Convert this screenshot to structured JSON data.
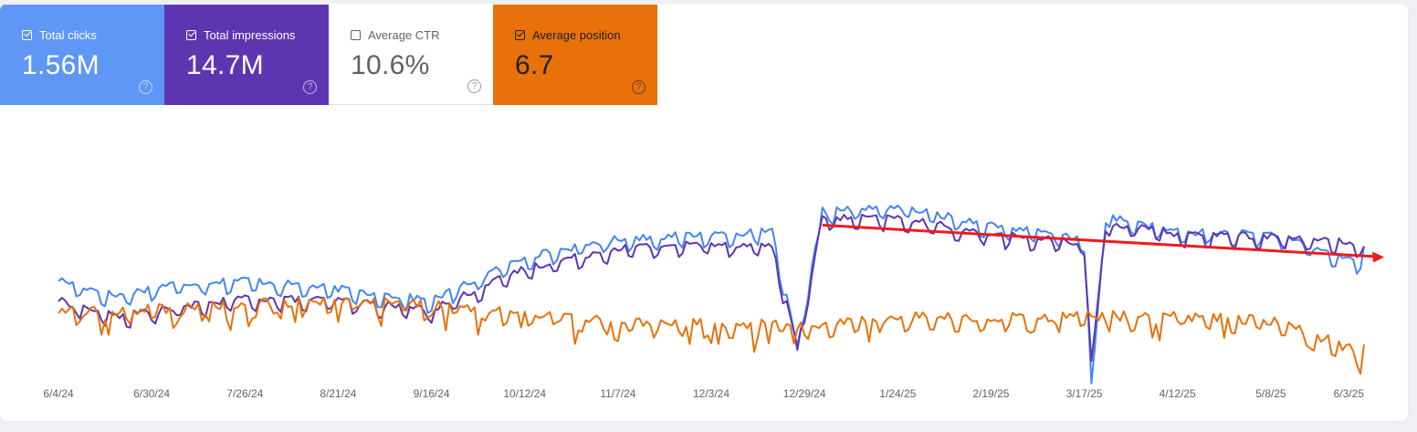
{
  "metrics": [
    {
      "label": "Total clicks",
      "value": "1.56M",
      "checked": true,
      "bg": "#5e97f6",
      "text_color": "#ffffff",
      "icon": "help-icon"
    },
    {
      "label": "Total impressions",
      "value": "14.7M",
      "checked": true,
      "bg": "#5e35b1",
      "text_color": "#ffffff",
      "icon": "help-icon"
    },
    {
      "label": "Average CTR",
      "value": "10.6%",
      "checked": false,
      "bg": "#ffffff",
      "text_color": "#5f6368",
      "icon": "help-icon"
    },
    {
      "label": "Average position",
      "value": "6.7",
      "checked": true,
      "bg": "#e8710a",
      "text_color": "#202124",
      "icon": "help-icon"
    }
  ],
  "chart_data": {
    "type": "line",
    "x_tick_labels": [
      "6/4/24",
      "6/30/24",
      "7/26/24",
      "8/21/24",
      "9/16/24",
      "10/12/24",
      "11/7/24",
      "12/3/24",
      "12/29/24",
      "1/24/25",
      "2/19/25",
      "3/17/25",
      "4/12/25",
      "5/8/25",
      "6/3/25"
    ],
    "x_range": [
      "6/4/24",
      "6/3/25"
    ],
    "grid": false,
    "y_axis_labels_shown": false,
    "series": [
      {
        "name": "Total clicks",
        "color": "#4285f4",
        "trend": "relative_level_0_to_1",
        "keypoints": [
          [
            "6/4/24",
            0.42
          ],
          [
            "6/20/24",
            0.35
          ],
          [
            "7/5/24",
            0.4
          ],
          [
            "7/26/24",
            0.42
          ],
          [
            "8/21/24",
            0.38
          ],
          [
            "9/16/24",
            0.33
          ],
          [
            "10/12/24",
            0.52
          ],
          [
            "11/7/24",
            0.6
          ],
          [
            "12/3/24",
            0.62
          ],
          [
            "12/20/24",
            0.63
          ],
          [
            "12/27/24",
            0.12
          ],
          [
            "1/3/25",
            0.72
          ],
          [
            "1/24/25",
            0.74
          ],
          [
            "2/19/25",
            0.66
          ],
          [
            "3/17/25",
            0.6
          ],
          [
            "3/19/25",
            -0.05
          ],
          [
            "3/23/25",
            0.7
          ],
          [
            "4/12/25",
            0.63
          ],
          [
            "5/8/25",
            0.62
          ],
          [
            "6/1/25",
            0.5
          ],
          [
            "6/3/25",
            0.55
          ]
        ]
      },
      {
        "name": "Total impressions",
        "color": "#5e35b1",
        "trend": "relative_level_0_to_1",
        "keypoints": [
          [
            "6/4/24",
            0.33
          ],
          [
            "6/20/24",
            0.26
          ],
          [
            "7/26/24",
            0.34
          ],
          [
            "8/21/24",
            0.33
          ],
          [
            "9/16/24",
            0.29
          ],
          [
            "10/12/24",
            0.47
          ],
          [
            "11/7/24",
            0.56
          ],
          [
            "12/3/24",
            0.58
          ],
          [
            "12/20/24",
            0.57
          ],
          [
            "12/27/24",
            0.12
          ],
          [
            "1/3/25",
            0.69
          ],
          [
            "1/24/25",
            0.69
          ],
          [
            "2/19/25",
            0.62
          ],
          [
            "3/17/25",
            0.58
          ],
          [
            "3/19/25",
            0.05
          ],
          [
            "3/23/25",
            0.67
          ],
          [
            "4/12/25",
            0.62
          ],
          [
            "5/8/25",
            0.61
          ],
          [
            "6/1/25",
            0.58
          ],
          [
            "6/3/25",
            0.57
          ]
        ]
      },
      {
        "name": "Average position",
        "color": "#e8710a",
        "trend": "relative_level_0_to_1",
        "keypoints": [
          [
            "6/4/24",
            0.28
          ],
          [
            "6/30/24",
            0.29
          ],
          [
            "7/26/24",
            0.31
          ],
          [
            "8/21/24",
            0.33
          ],
          [
            "9/16/24",
            0.31
          ],
          [
            "10/12/24",
            0.28
          ],
          [
            "11/7/24",
            0.23
          ],
          [
            "12/3/24",
            0.23
          ],
          [
            "12/29/24",
            0.22
          ],
          [
            "1/24/25",
            0.26
          ],
          [
            "2/19/25",
            0.25
          ],
          [
            "3/17/25",
            0.26
          ],
          [
            "4/12/25",
            0.26
          ],
          [
            "5/8/25",
            0.24
          ],
          [
            "5/25/25",
            0.15
          ],
          [
            "6/1/25",
            0.1
          ],
          [
            "6/3/25",
            0.14
          ]
        ]
      }
    ],
    "annotation": {
      "type": "arrow",
      "color": "#ee1c1c",
      "from": [
        "1/3/25",
        0.67
      ],
      "to": [
        "6/3/25",
        0.53
      ]
    }
  }
}
